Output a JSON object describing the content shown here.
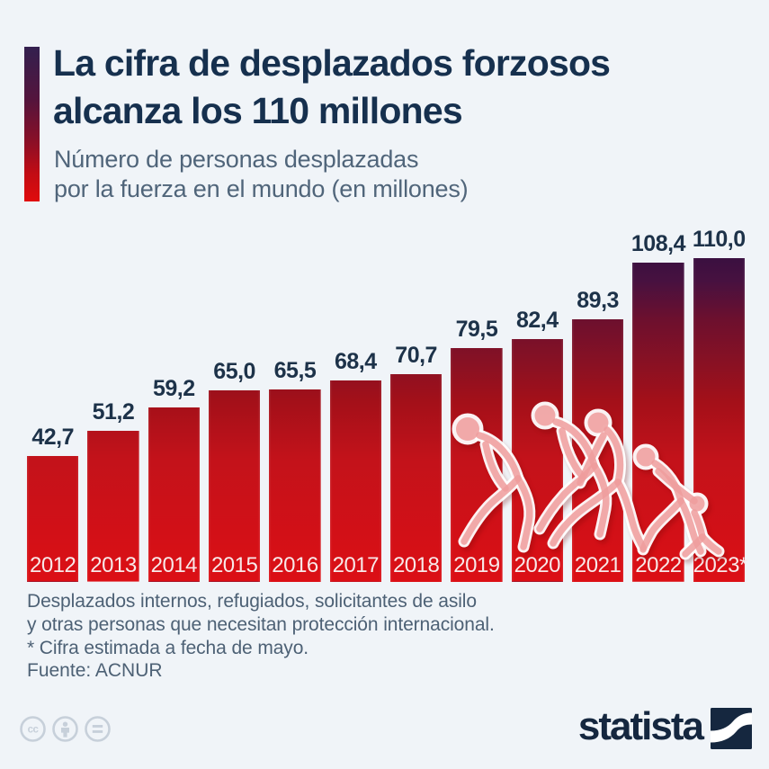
{
  "page": {
    "background": "#f0f4f8",
    "accent_top_color": "#33204f",
    "accent_bottom_color": "#e00b0c"
  },
  "header": {
    "title_line1": "La cifra de desplazados forzosos",
    "title_line2": "alcanza los 110 millones",
    "subtitle_line1": "Número de personas desplazadas",
    "subtitle_line2": "por la fuerza en el mundo (en millones)"
  },
  "chart_data": {
    "type": "bar",
    "title": "Número de personas desplazadas por la fuerza en el mundo (en millones)",
    "categories": [
      "2012",
      "2013",
      "2014",
      "2015",
      "2016",
      "2017",
      "2018",
      "2019",
      "2020",
      "2021",
      "2022",
      "2023*"
    ],
    "values": [
      42.7,
      51.2,
      59.2,
      65.0,
      65.5,
      68.4,
      70.7,
      79.5,
      82.4,
      89.3,
      108.4,
      110.0
    ],
    "value_labels": [
      "42,7",
      "51,2",
      "59,2",
      "65,0",
      "65,5",
      "68,4",
      "70,7",
      "79,5",
      "82,4",
      "89,3",
      "108,4",
      "110,0"
    ],
    "ylim": [
      0,
      110
    ],
    "xlabel": "",
    "ylabel": "",
    "grid": false,
    "legend": false,
    "decimal_separator": ",",
    "bar_gradient_bottom": "#dc0f15",
    "bar_gradient_top": "#3a1040",
    "value_label_color": "#1d3249",
    "category_label_color": "#f8e9e9"
  },
  "illustration": {
    "description": "silhouettes of refugees running with a child",
    "fill_color": "#ee9c9c",
    "outline_color": "#ffffff"
  },
  "footnote": {
    "line1": "Desplazados internos, refugiados, solicitantes de asilo",
    "line2": "y otras personas que necesitan protección internacional.",
    "line3": "* Cifra estimada a fecha de mayo."
  },
  "source": {
    "label": "Fuente: ACNUR"
  },
  "branding": {
    "logo_text": "statista",
    "logo_color": "#15273f",
    "license_icons": [
      "cc",
      "attribution",
      "no-derivatives"
    ]
  }
}
